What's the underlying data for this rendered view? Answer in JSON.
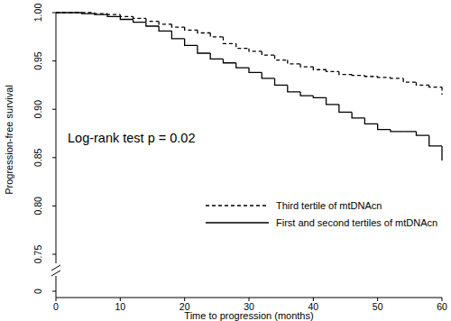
{
  "chart_data": {
    "type": "step",
    "x_label": "Time to progression (months)",
    "y_label": "Progression-free survival",
    "annotation": "Log-rank test p = 0.02",
    "x": [
      0,
      2,
      4,
      6,
      8,
      10,
      12,
      14,
      16,
      18,
      20,
      22,
      24,
      26,
      28,
      30,
      32,
      34,
      36,
      38,
      40,
      42,
      44,
      46,
      48,
      50,
      52,
      54,
      56,
      58,
      60
    ],
    "series": [
      {
        "name": "Third tertile of mtDNAcn",
        "color": "#000000",
        "line_style": "dashed",
        "values": [
          1,
          1,
          1,
          0.999,
          0.998,
          0.996,
          0.994,
          0.991,
          0.988,
          0.985,
          0.982,
          0.979,
          0.975,
          0.968,
          0.963,
          0.96,
          0.956,
          0.951,
          0.947,
          0.944,
          0.941,
          0.939,
          0.936,
          0.935,
          0.934,
          0.933,
          0.932,
          0.928,
          0.925,
          0.923,
          0.915
        ]
      },
      {
        "name": "First and second tertiles of mtDNAcn",
        "color": "#000000",
        "line_style": "solid",
        "values": [
          1,
          1,
          0.999,
          0.998,
          0.996,
          0.993,
          0.99,
          0.986,
          0.981,
          0.973,
          0.966,
          0.958,
          0.952,
          0.948,
          0.943,
          0.938,
          0.932,
          0.925,
          0.918,
          0.914,
          0.912,
          0.905,
          0.897,
          0.891,
          0.885,
          0.879,
          0.877,
          0.877,
          0.873,
          0.862,
          0.847
        ]
      }
    ],
    "xlim": [
      0,
      60
    ],
    "xticks": [
      0,
      10,
      20,
      30,
      40,
      50,
      60
    ],
    "ylim": [
      0.75,
      1
    ],
    "yticks": [
      0.75,
      {
        "value": 0.8,
        "label": "0.80"
      },
      0.85,
      {
        "value": 0.9,
        "label": "0.90"
      },
      0.95,
      {
        "value": 1,
        "label": "1.00"
      }
    ],
    "y_break_tick": 0,
    "grid": false,
    "legend": "bottom-right"
  }
}
